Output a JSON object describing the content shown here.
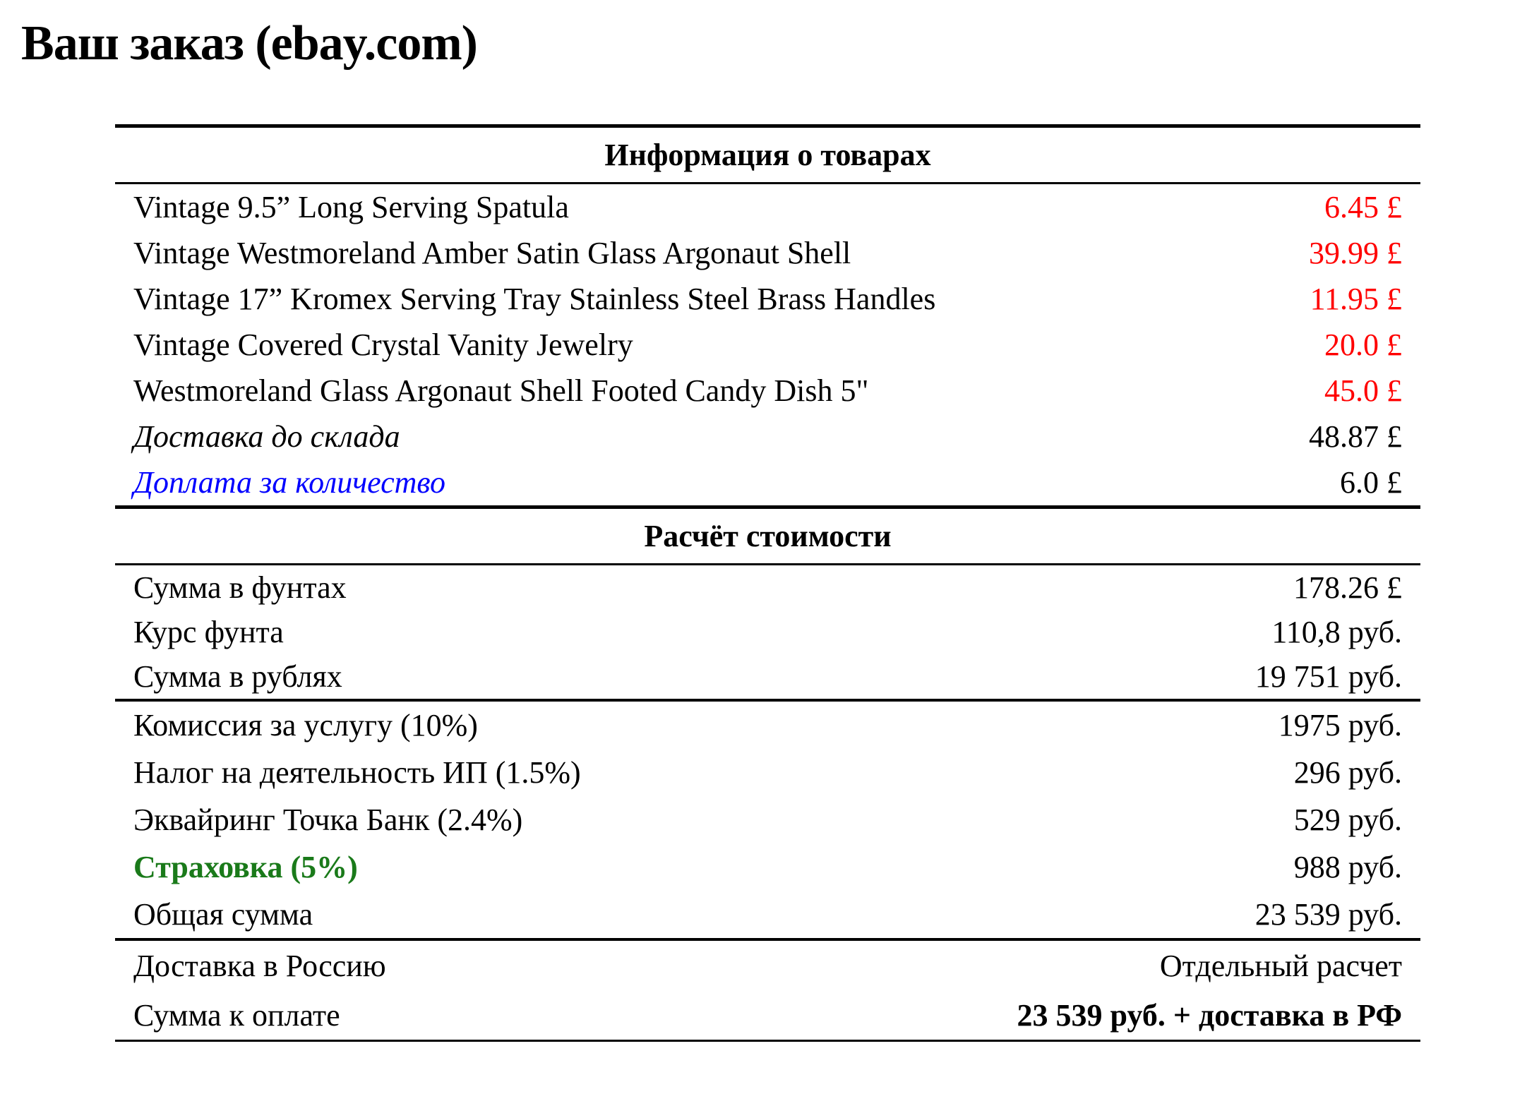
{
  "title": "Ваш заказ (ebay.com)",
  "sections": {
    "info": {
      "header": "Информация о товарах",
      "items": [
        {
          "label": "Vintage 9.5” Long Serving Spatula",
          "value": "6.45 £"
        },
        {
          "label": "Vintage Westmoreland Amber Satin Glass Argonaut Shell",
          "value": "39.99 £"
        },
        {
          "label": "Vintage 17” Kromex Serving Tray Stainless Steel Brass Handles",
          "value": "11.95 £"
        },
        {
          "label": "Vintage Covered Crystal Vanity Jewelry",
          "value": "20.0 £"
        },
        {
          "label": "Westmoreland Glass Argonaut Shell Footed Candy Dish 5\"",
          "value": "45.0 £"
        },
        {
          "label": "Доставка до склада",
          "value": "48.87 £"
        },
        {
          "label": "Доплата за количество",
          "value": "6.0 £"
        }
      ]
    },
    "calc": {
      "header": "Расчёт стоимости",
      "subtotal_rows": [
        {
          "label": "Сумма в фунтах",
          "value": "178.26 £"
        },
        {
          "label": "Курс фунта",
          "value": "110,8 руб."
        },
        {
          "label": "Сумма в рублях",
          "value": "19 751 руб."
        }
      ],
      "fee_rows": [
        {
          "label": "Комиссия за услугу (10%)",
          "value": "1975 руб."
        },
        {
          "label": "Налог на деятельность ИП (1.5%)",
          "value": "296 руб."
        },
        {
          "label": "Эквайринг Точка Банк (2.4%)",
          "value": "529 руб."
        },
        {
          "label": "Страховка (5%)",
          "value": "988 руб."
        },
        {
          "label": "Общая сумма",
          "value": "23 539 руб."
        }
      ],
      "final_rows": [
        {
          "label": "Доставка в Россию",
          "value": "Отдельный расчет"
        },
        {
          "label": "Сумма к оплате",
          "value": "23 539 руб. + доставка в РФ"
        }
      ]
    }
  },
  "colors": {
    "item_price_red": "#ff0000",
    "surcharge_link_blue": "#0000ff",
    "insurance_green": "#1a7a1a"
  }
}
